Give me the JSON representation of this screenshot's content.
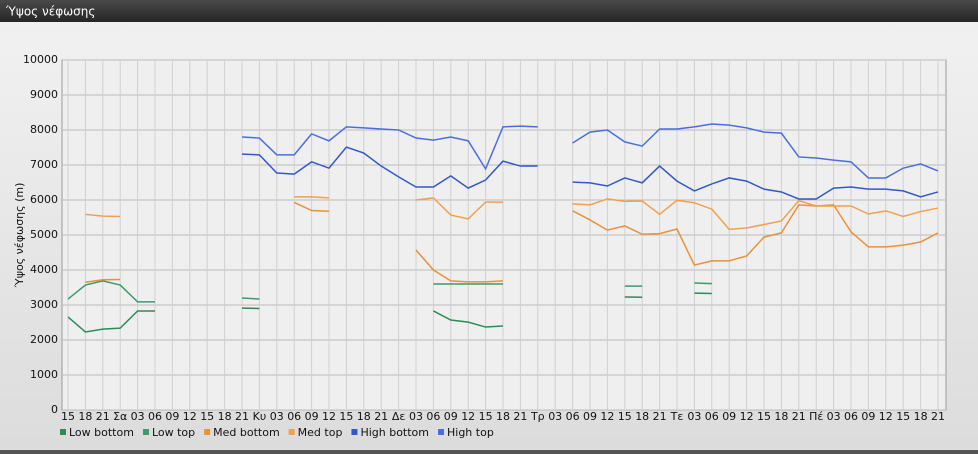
{
  "chart_data": {
    "type": "line",
    "title": "Ύψος νέφωσης",
    "y_label": "Ύψος νέφωσης (m)",
    "categories": [
      "15",
      "18",
      "21",
      "Σα",
      "03",
      "06",
      "09",
      "12",
      "15",
      "18",
      "21",
      "Κυ",
      "03",
      "06",
      "09",
      "12",
      "15",
      "18",
      "21",
      "Δε",
      "03",
      "06",
      "09",
      "12",
      "15",
      "18",
      "21",
      "Τρ",
      "03",
      "06",
      "09",
      "12",
      "15",
      "18",
      "21",
      "Τε",
      "03",
      "06",
      "09",
      "12",
      "15",
      "18",
      "21",
      "Πέ",
      "03",
      "06",
      "09",
      "12",
      "15",
      "18",
      "21"
    ],
    "ylim": [
      0,
      10000
    ],
    "yticks": [
      0,
      1000,
      2000,
      3000,
      4000,
      5000,
      6000,
      7000,
      8000,
      9000,
      10000
    ],
    "grid": true,
    "series": [
      {
        "name": "Low bottom",
        "color": "#2e8b57",
        "values": [
          2660,
          2230,
          2310,
          2340,
          2830,
          2830,
          null,
          null,
          null,
          null,
          2910,
          2900,
          null,
          null,
          null,
          null,
          null,
          null,
          null,
          null,
          null,
          2830,
          2570,
          2510,
          2370,
          2400,
          null,
          null,
          null,
          null,
          null,
          null,
          3230,
          3220,
          null,
          null,
          3340,
          3330,
          null,
          null,
          null,
          null,
          null,
          null,
          null,
          null,
          null,
          null,
          null,
          null,
          null
        ]
      },
      {
        "name": "Low top",
        "color": "#3c9a6c",
        "values": [
          3170,
          3570,
          3690,
          3570,
          3090,
          3090,
          null,
          null,
          null,
          null,
          3200,
          3170,
          null,
          null,
          null,
          null,
          null,
          null,
          null,
          null,
          null,
          3600,
          3600,
          3600,
          3600,
          3600,
          null,
          null,
          null,
          null,
          null,
          null,
          3540,
          3540,
          null,
          null,
          3630,
          3610,
          null,
          null,
          null,
          null,
          null,
          null,
          null,
          null,
          null,
          null,
          null,
          null,
          null
        ]
      },
      {
        "name": "Med bottom",
        "color": "#e8913a",
        "values": [
          null,
          3650,
          3720,
          3730,
          null,
          null,
          null,
          null,
          null,
          null,
          null,
          null,
          null,
          5930,
          5700,
          5680,
          null,
          null,
          null,
          null,
          4570,
          4000,
          3690,
          3660,
          3660,
          3690,
          null,
          null,
          null,
          5690,
          5430,
          5140,
          5260,
          5020,
          5040,
          5170,
          4140,
          4260,
          4260,
          4400,
          4940,
          5060,
          5860,
          5830,
          5860,
          5090,
          4660,
          4660,
          4710,
          4800,
          5060
        ]
      },
      {
        "name": "Med top",
        "color": "#f0a050",
        "values": [
          null,
          5590,
          5540,
          5530,
          null,
          null,
          null,
          null,
          null,
          null,
          null,
          null,
          null,
          6090,
          6090,
          6060,
          null,
          null,
          null,
          null,
          6000,
          6060,
          5570,
          5460,
          5940,
          5940,
          null,
          null,
          null,
          5890,
          5860,
          6030,
          5960,
          5970,
          5590,
          5990,
          5920,
          5740,
          5160,
          5200,
          5300,
          5400,
          5980,
          5830,
          5830,
          5830,
          5600,
          5690,
          5530,
          5670,
          5770
        ]
      },
      {
        "name": "High bottom",
        "color": "#3358c8",
        "values": [
          null,
          null,
          null,
          null,
          null,
          null,
          null,
          null,
          null,
          null,
          7310,
          7290,
          6770,
          6740,
          7090,
          6910,
          7510,
          7340,
          6970,
          6660,
          6370,
          6370,
          6690,
          6340,
          6570,
          7110,
          6970,
          6970,
          null,
          6510,
          6490,
          6400,
          6630,
          6490,
          6970,
          6540,
          6260,
          6460,
          6630,
          6540,
          6310,
          6230,
          6030,
          6030,
          6340,
          6370,
          6310,
          6310,
          6260,
          6090,
          6230
        ]
      },
      {
        "name": "High top",
        "color": "#4a6ee0",
        "values": [
          null,
          null,
          null,
          null,
          null,
          null,
          null,
          null,
          null,
          null,
          7800,
          7770,
          7290,
          7290,
          7890,
          7690,
          8090,
          8060,
          8030,
          8000,
          7770,
          7710,
          7800,
          7690,
          6890,
          8090,
          8110,
          8090,
          null,
          7630,
          7940,
          8000,
          7660,
          7540,
          8030,
          8030,
          8090,
          8170,
          8140,
          8060,
          7940,
          7910,
          7230,
          7200,
          7140,
          7090,
          6630,
          6630,
          6910,
          7030,
          6830
        ]
      }
    ]
  }
}
